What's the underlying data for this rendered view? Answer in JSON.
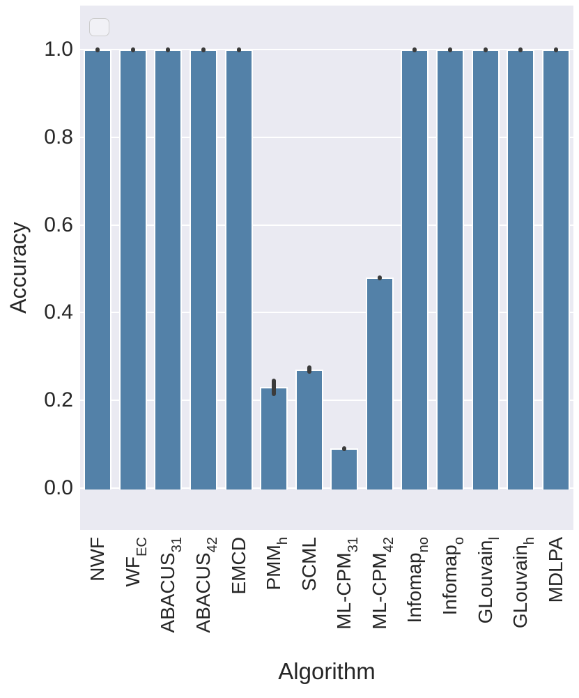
{
  "chart_data": {
    "type": "bar",
    "title": "",
    "xlabel": "Algorithm",
    "ylabel": "Accuracy",
    "ylim": [
      -0.095,
      1.1
    ],
    "yticks": [
      "0.0",
      "0.2",
      "0.4",
      "0.6",
      "0.8",
      "1.0"
    ],
    "grid": "horizontal-white-lines",
    "legend": {
      "visible": true,
      "entries": [],
      "position": "upper-left"
    },
    "colors": {
      "bar": "#5381A8",
      "error": "#3B3B3B",
      "plot_background": "#EAEAF2",
      "gridline": "#FFFFFF",
      "text": "#262626",
      "legend_border": "#CCCCCC"
    },
    "bars": [
      {
        "label": "NWF",
        "sub": "",
        "value": 1.0,
        "err": [
          1.0,
          1.0
        ]
      },
      {
        "label": "WF",
        "sub": "EC",
        "value": 1.0,
        "err": [
          1.0,
          1.0
        ]
      },
      {
        "label": "ABACUS",
        "sub": "31",
        "value": 1.0,
        "err": [
          1.0,
          1.0
        ]
      },
      {
        "label": "ABACUS",
        "sub": "42",
        "value": 1.0,
        "err": [
          1.0,
          1.0
        ]
      },
      {
        "label": "EMCD",
        "sub": "",
        "value": 1.0,
        "err": [
          1.0,
          1.0
        ]
      },
      {
        "label": "PMM",
        "sub": "h",
        "value": 0.23,
        "err": [
          0.21,
          0.25
        ]
      },
      {
        "label": "SCML",
        "sub": "",
        "value": 0.27,
        "err": [
          0.26,
          0.28
        ]
      },
      {
        "label": "ML-CPM",
        "sub": "31",
        "value": 0.09,
        "err": [
          0.085,
          0.095
        ]
      },
      {
        "label": "ML-CPM",
        "sub": "42",
        "value": 0.48,
        "err": [
          0.475,
          0.485
        ]
      },
      {
        "label": "Infomap",
        "sub": "no",
        "value": 1.0,
        "err": [
          1.0,
          1.0
        ]
      },
      {
        "label": "Infomap",
        "sub": "o",
        "value": 1.0,
        "err": [
          1.0,
          1.0
        ]
      },
      {
        "label": "GLouvain",
        "sub": "l",
        "value": 1.0,
        "err": [
          1.0,
          1.0
        ]
      },
      {
        "label": "GLouvain",
        "sub": "h",
        "value": 1.0,
        "err": [
          1.0,
          1.0
        ]
      },
      {
        "label": "MDLPA",
        "sub": "",
        "value": 1.0,
        "err": [
          1.0,
          1.0
        ]
      }
    ]
  }
}
